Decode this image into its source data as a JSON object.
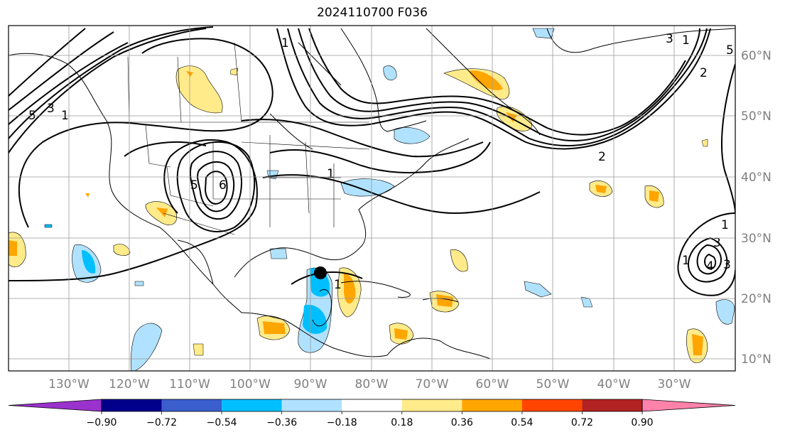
{
  "title": "2024110700 F036",
  "lon_labels": [
    "130°W",
    "120°W",
    "110°W",
    "100°W",
    "90°W",
    "80°W",
    "70°W",
    "60°W",
    "50°W",
    "40°W",
    "30°W"
  ],
  "lat_labels": [
    "60°N",
    "50°N",
    "40°N",
    "30°N",
    "20°N",
    "10°N"
  ],
  "colorbar": {
    "ticks": [
      "−0.90",
      "−0.72",
      "−0.54",
      "−0.36",
      "−0.18",
      "0.18",
      "0.36",
      "0.54",
      "0.72",
      "0.90"
    ],
    "colors": [
      "#9a32cd",
      "#00008b",
      "#3a5fcd",
      "#00bfff",
      "#b0e2ff",
      "#ffffff",
      "#ffeb8a",
      "#ffa500",
      "#ff4500",
      "#b22222",
      "#ff82ab"
    ]
  },
  "contour_labels": [
    "1",
    "3",
    "5",
    "6",
    "5",
    "1",
    "2",
    "1",
    "3",
    "5",
    "2",
    "1",
    "3",
    "4",
    "3",
    "1",
    "1",
    "1"
  ],
  "storm_marker": "black-dot"
}
